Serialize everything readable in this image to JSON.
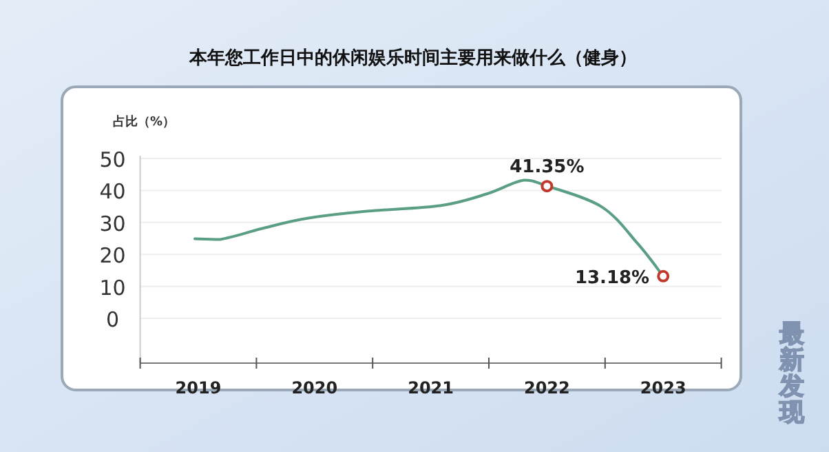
{
  "chart_data": {
    "type": "line",
    "title": "本年您工作日中的休闲娱乐时间主要用来做什么（健身）",
    "ylabel": "占比（%）",
    "annotations": [
      "最新发现"
    ],
    "xlim": [
      2018.5,
      2023.5
    ],
    "xticks": [
      {
        "value": 2018.5,
        "label": null
      },
      {
        "value": 2019,
        "label": "2019"
      },
      {
        "value": 2019.5,
        "label": null
      },
      {
        "value": 2020,
        "label": "2020"
      },
      {
        "value": 2020.5,
        "label": null
      },
      {
        "value": 2021,
        "label": "2021"
      },
      {
        "value": 2021.5,
        "label": null
      },
      {
        "value": 2022,
        "label": "2022"
      },
      {
        "value": 2022.5,
        "label": null
      },
      {
        "value": 2023,
        "label": "2023"
      },
      {
        "value": 2023.5,
        "label": null
      }
    ],
    "ylim": [
      -14,
      50
    ],
    "yticks": [
      0,
      10,
      20,
      30,
      40,
      50
    ],
    "grid": "y",
    "series": [
      {
        "type": "line",
        "color": "#5a9e84",
        "marker": "none",
        "x": [
          2018.97,
          2019.19,
          2019.58,
          2019.94,
          2020.45,
          2021.09,
          2021.48,
          2021.8,
          2022,
          2022.47,
          2022.78,
          2023
        ],
        "values": [
          24.9,
          24.7,
          28.4,
          31.3,
          33.5,
          35.3,
          38.9,
          43.2,
          41.4,
          34.9,
          23.4,
          13.2
        ]
      },
      {
        "type": "scatter",
        "color": "#c0392b",
        "marker": "circle",
        "x": [
          2022,
          2023
        ],
        "values": [
          41.35,
          13.18
        ],
        "value_labels": [
          "41.35%",
          "13.18%"
        ]
      }
    ]
  }
}
